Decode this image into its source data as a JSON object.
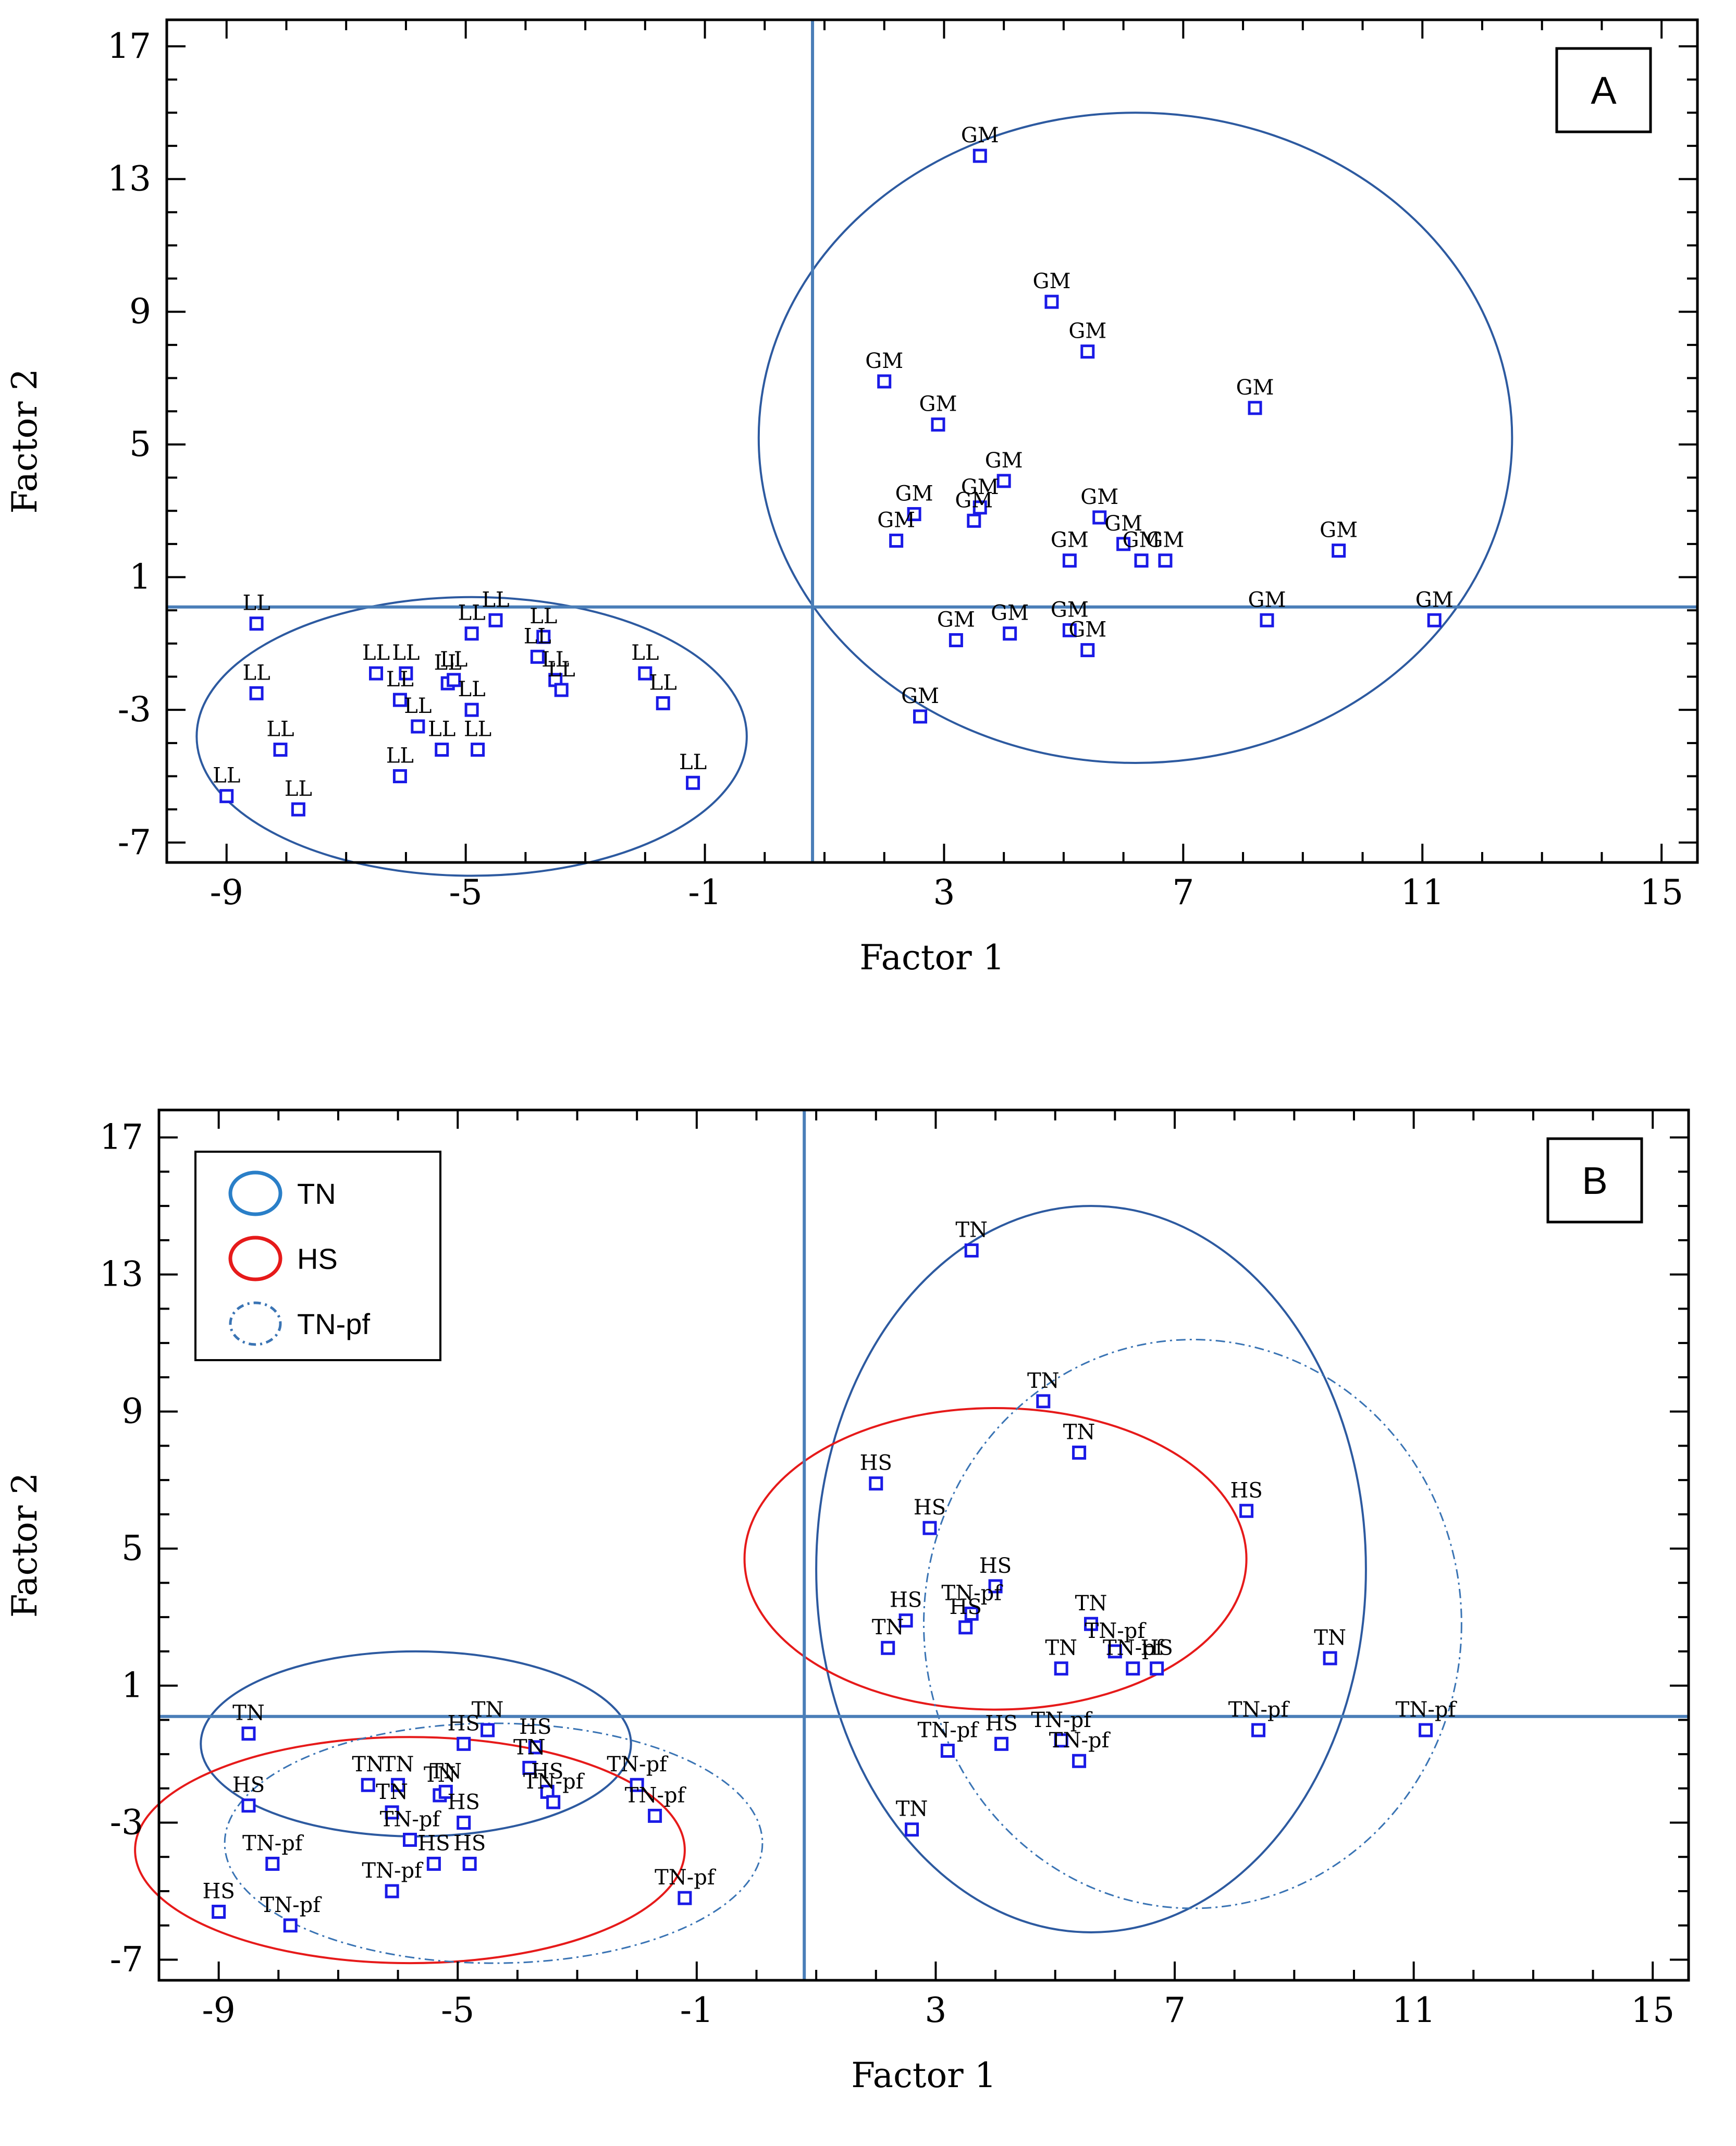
{
  "colors": {
    "axis": "#000000",
    "crosshair": "#4a7eb8",
    "marker": "#1a1ae6",
    "ellipse_blue": "#2d5aa0",
    "ellipse_red": "#e61a1a",
    "ellipse_dash": "#3a74b4"
  },
  "chart_data": [
    {
      "type": "scatter",
      "panel": "A",
      "panel_label": "A",
      "xlabel": "Factor 1",
      "ylabel": "Factor 2",
      "xlim": [
        -10,
        15.6
      ],
      "ylim": [
        -7.6,
        17.8
      ],
      "xticks": [
        -9,
        -5,
        -1,
        3,
        7,
        11,
        15
      ],
      "yticks": [
        -7,
        -3,
        1,
        5,
        9,
        13,
        17
      ],
      "xtick_labels": [
        "-9",
        "-5",
        "-1",
        "3",
        "7",
        "11",
        "15"
      ],
      "ytick_labels": [
        "-7",
        "-3",
        "1",
        "5",
        "9",
        "13",
        "17"
      ],
      "crosshair": {
        "x": 0.8,
        "y": 0.1
      },
      "points": [
        {
          "x": -9.0,
          "y": -5.6,
          "label": "LL"
        },
        {
          "x": -7.8,
          "y": -6.0,
          "label": "LL"
        },
        {
          "x": -8.1,
          "y": -4.2,
          "label": "LL"
        },
        {
          "x": -8.5,
          "y": -2.5,
          "label": "LL"
        },
        {
          "x": -8.5,
          "y": -0.4,
          "label": "LL"
        },
        {
          "x": -6.1,
          "y": -5.0,
          "label": "LL"
        },
        {
          "x": -5.8,
          "y": -3.5,
          "label": "LL"
        },
        {
          "x": -6.1,
          "y": -2.7,
          "label": "LL"
        },
        {
          "x": -6.5,
          "y": -1.9,
          "label": "LL"
        },
        {
          "x": -6.0,
          "y": -1.9,
          "label": "LL"
        },
        {
          "x": -5.4,
          "y": -4.2,
          "label": "LL"
        },
        {
          "x": -4.8,
          "y": -4.2,
          "label": "LL"
        },
        {
          "x": -4.9,
          "y": -3.0,
          "label": "LL"
        },
        {
          "x": -5.3,
          "y": -2.2,
          "label": "LL"
        },
        {
          "x": -5.2,
          "y": -2.1,
          "label": "LL"
        },
        {
          "x": -4.9,
          "y": -0.7,
          "label": "LL"
        },
        {
          "x": -4.5,
          "y": -0.3,
          "label": "LL"
        },
        {
          "x": -3.8,
          "y": -1.4,
          "label": "LL"
        },
        {
          "x": -3.7,
          "y": -0.8,
          "label": "LL"
        },
        {
          "x": -3.5,
          "y": -2.1,
          "label": "LL"
        },
        {
          "x": -3.4,
          "y": -2.4,
          "label": "LL"
        },
        {
          "x": -2.0,
          "y": -1.9,
          "label": "LL"
        },
        {
          "x": -1.7,
          "y": -2.8,
          "label": "LL"
        },
        {
          "x": -1.2,
          "y": -5.2,
          "label": "LL"
        },
        {
          "x": 3.6,
          "y": 13.7,
          "label": "GM"
        },
        {
          "x": 4.8,
          "y": 9.3,
          "label": "GM"
        },
        {
          "x": 5.4,
          "y": 7.8,
          "label": "GM"
        },
        {
          "x": 2.0,
          "y": 6.9,
          "label": "GM"
        },
        {
          "x": 8.2,
          "y": 6.1,
          "label": "GM"
        },
        {
          "x": 2.9,
          "y": 5.6,
          "label": "GM"
        },
        {
          "x": 4.0,
          "y": 3.9,
          "label": "GM"
        },
        {
          "x": 3.6,
          "y": 3.1,
          "label": "GM"
        },
        {
          "x": 3.5,
          "y": 2.7,
          "label": "GM"
        },
        {
          "x": 2.5,
          "y": 2.9,
          "label": "GM"
        },
        {
          "x": 2.2,
          "y": 2.1,
          "label": "GM"
        },
        {
          "x": 5.6,
          "y": 2.8,
          "label": "GM"
        },
        {
          "x": 6.0,
          "y": 2.0,
          "label": "GM"
        },
        {
          "x": 6.3,
          "y": 1.5,
          "label": "GM"
        },
        {
          "x": 6.7,
          "y": 1.5,
          "label": "GM"
        },
        {
          "x": 5.1,
          "y": 1.5,
          "label": "GM"
        },
        {
          "x": 9.6,
          "y": 1.8,
          "label": "GM"
        },
        {
          "x": 3.2,
          "y": -0.9,
          "label": "GM"
        },
        {
          "x": 4.1,
          "y": -0.7,
          "label": "GM"
        },
        {
          "x": 5.1,
          "y": -0.6,
          "label": "GM"
        },
        {
          "x": 5.4,
          "y": -1.2,
          "label": "GM"
        },
        {
          "x": 8.4,
          "y": -0.3,
          "label": "GM"
        },
        {
          "x": 11.2,
          "y": -0.3,
          "label": "GM"
        },
        {
          "x": 2.6,
          "y": -3.2,
          "label": "GM"
        }
      ],
      "ellipses": [
        {
          "group": "LL",
          "cx": -4.9,
          "cy": -3.8,
          "rx": 4.6,
          "ry": 4.2,
          "style": "solid-blue"
        },
        {
          "group": "GM",
          "cx": 6.2,
          "cy": 5.2,
          "rx": 6.3,
          "ry": 9.8,
          "style": "solid-blue"
        }
      ]
    },
    {
      "type": "scatter",
      "panel": "B",
      "panel_label": "B",
      "xlabel": "Factor 1",
      "ylabel": "Factor 2",
      "xlim": [
        -10,
        15.6
      ],
      "ylim": [
        -7.6,
        17.8
      ],
      "xticks": [
        -9,
        -5,
        -1,
        3,
        7,
        11,
        15
      ],
      "yticks": [
        -7,
        -3,
        1,
        5,
        9,
        13,
        17
      ],
      "xtick_labels": [
        "-9",
        "-5",
        "-1",
        "3",
        "7",
        "11",
        "15"
      ],
      "ytick_labels": [
        "-7",
        "-3",
        "1",
        "5",
        "9",
        "13",
        "17"
      ],
      "crosshair": {
        "x": 0.8,
        "y": 0.1
      },
      "legend": {
        "position": "top-left",
        "entries": [
          {
            "label": "TN",
            "style": "solid-blue"
          },
          {
            "label": "HS",
            "style": "solid-red"
          },
          {
            "label": "TN-pf",
            "style": "dashdot-blue"
          }
        ]
      },
      "points": [
        {
          "x": -9.0,
          "y": -5.6,
          "label": "HS"
        },
        {
          "x": -7.8,
          "y": -6.0,
          "label": "TN-pf"
        },
        {
          "x": -8.1,
          "y": -4.2,
          "label": "TN-pf"
        },
        {
          "x": -8.5,
          "y": -2.5,
          "label": "HS"
        },
        {
          "x": -8.5,
          "y": -0.4,
          "label": "TN"
        },
        {
          "x": -6.1,
          "y": -5.0,
          "label": "TN-pf"
        },
        {
          "x": -5.8,
          "y": -3.5,
          "label": "TN-pf"
        },
        {
          "x": -6.1,
          "y": -2.7,
          "label": "TN"
        },
        {
          "x": -6.5,
          "y": -1.9,
          "label": "TN"
        },
        {
          "x": -6.0,
          "y": -1.9,
          "label": "TN"
        },
        {
          "x": -5.4,
          "y": -4.2,
          "label": "HS"
        },
        {
          "x": -4.8,
          "y": -4.2,
          "label": "HS"
        },
        {
          "x": -4.9,
          "y": -3.0,
          "label": "HS"
        },
        {
          "x": -5.3,
          "y": -2.2,
          "label": "TN"
        },
        {
          "x": -5.2,
          "y": -2.1,
          "label": "TN"
        },
        {
          "x": -4.9,
          "y": -0.7,
          "label": "HS"
        },
        {
          "x": -4.5,
          "y": -0.3,
          "label": "TN"
        },
        {
          "x": -3.8,
          "y": -1.4,
          "label": "TN"
        },
        {
          "x": -3.7,
          "y": -0.8,
          "label": "HS"
        },
        {
          "x": -3.5,
          "y": -2.1,
          "label": "HS"
        },
        {
          "x": -3.4,
          "y": -2.4,
          "label": "TN-pf"
        },
        {
          "x": -2.0,
          "y": -1.9,
          "label": "TN-pf"
        },
        {
          "x": -1.7,
          "y": -2.8,
          "label": "TN-pf"
        },
        {
          "x": -1.2,
          "y": -5.2,
          "label": "TN-pf"
        },
        {
          "x": 3.6,
          "y": 13.7,
          "label": "TN"
        },
        {
          "x": 4.8,
          "y": 9.3,
          "label": "TN"
        },
        {
          "x": 5.4,
          "y": 7.8,
          "label": "TN"
        },
        {
          "x": 2.0,
          "y": 6.9,
          "label": "HS"
        },
        {
          "x": 8.2,
          "y": 6.1,
          "label": "HS"
        },
        {
          "x": 2.9,
          "y": 5.6,
          "label": "HS"
        },
        {
          "x": 4.0,
          "y": 3.9,
          "label": "HS"
        },
        {
          "x": 3.6,
          "y": 3.1,
          "label": "TN-pf"
        },
        {
          "x": 3.5,
          "y": 2.7,
          "label": "HS"
        },
        {
          "x": 2.5,
          "y": 2.9,
          "label": "HS"
        },
        {
          "x": 2.2,
          "y": 2.1,
          "label": "TN"
        },
        {
          "x": 5.6,
          "y": 2.8,
          "label": "TN"
        },
        {
          "x": 6.0,
          "y": 2.0,
          "label": "TN-pf"
        },
        {
          "x": 6.3,
          "y": 1.5,
          "label": "TN-pf"
        },
        {
          "x": 6.7,
          "y": 1.5,
          "label": "HS"
        },
        {
          "x": 5.1,
          "y": 1.5,
          "label": "TN"
        },
        {
          "x": 9.6,
          "y": 1.8,
          "label": "TN"
        },
        {
          "x": 3.2,
          "y": -0.9,
          "label": "TN-pf"
        },
        {
          "x": 4.1,
          "y": -0.7,
          "label": "HS"
        },
        {
          "x": 5.1,
          "y": -0.6,
          "label": "TN-pf"
        },
        {
          "x": 5.4,
          "y": -1.2,
          "label": "TN-pf"
        },
        {
          "x": 8.4,
          "y": -0.3,
          "label": "TN-pf"
        },
        {
          "x": 11.2,
          "y": -0.3,
          "label": "TN-pf"
        },
        {
          "x": 2.6,
          "y": -3.2,
          "label": "TN"
        }
      ],
      "ellipses": [
        {
          "group": "TN",
          "cx": -5.7,
          "cy": -0.7,
          "rx": 3.6,
          "ry": 2.7,
          "style": "solid-blue"
        },
        {
          "group": "HS",
          "cx": -5.8,
          "cy": -3.8,
          "rx": 4.6,
          "ry": 3.3,
          "style": "solid-red"
        },
        {
          "group": "TN-pf",
          "cx": -4.4,
          "cy": -3.6,
          "rx": 4.5,
          "ry": 3.5,
          "style": "dashdot-blue"
        },
        {
          "group": "TN",
          "cx": 5.6,
          "cy": 4.4,
          "rx": 4.6,
          "ry": 10.6,
          "style": "solid-blue"
        },
        {
          "group": "HS",
          "cx": 4.0,
          "cy": 4.7,
          "rx": 4.2,
          "ry": 4.4,
          "style": "solid-red"
        },
        {
          "group": "TN-pf",
          "cx": 7.3,
          "cy": 2.8,
          "rx": 4.5,
          "ry": 8.3,
          "style": "dashdot-blue"
        }
      ]
    }
  ]
}
